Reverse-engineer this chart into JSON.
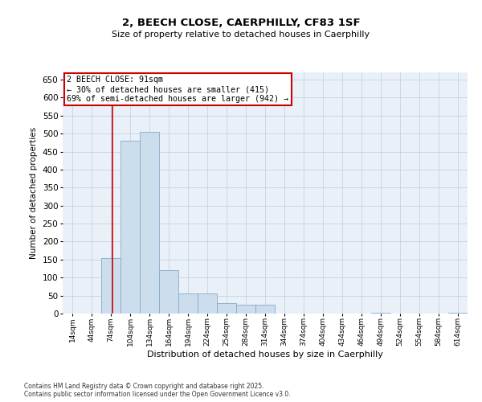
{
  "title": "2, BEECH CLOSE, CAERPHILLY, CF83 1SF",
  "subtitle": "Size of property relative to detached houses in Caerphilly",
  "xlabel": "Distribution of detached houses by size in Caerphilly",
  "ylabel": "Number of detached properties",
  "footer_line1": "Contains HM Land Registry data © Crown copyright and database right 2025.",
  "footer_line2": "Contains public sector information licensed under the Open Government Licence v3.0.",
  "annotation_title": "2 BEECH CLOSE: 91sqm",
  "annotation_line1": "← 30% of detached houses are smaller (415)",
  "annotation_line2": "69% of semi-detached houses are larger (942) →",
  "bar_color": "#ccdded",
  "bar_edge_color": "#88aac8",
  "vline_color": "#cc0000",
  "vline_x": 91,
  "annotation_box_color": "#ffffff",
  "annotation_box_edge": "#cc0000",
  "background_color": "#eaf0f8",
  "categories": [
    "14sqm",
    "44sqm",
    "74sqm",
    "104sqm",
    "134sqm",
    "164sqm",
    "194sqm",
    "224sqm",
    "254sqm",
    "284sqm",
    "314sqm",
    "344sqm",
    "374sqm",
    "404sqm",
    "434sqm",
    "464sqm",
    "494sqm",
    "524sqm",
    "554sqm",
    "584sqm",
    "614sqm"
  ],
  "bin_edges": [
    14,
    44,
    74,
    104,
    134,
    164,
    194,
    224,
    254,
    284,
    314,
    344,
    374,
    404,
    434,
    464,
    494,
    524,
    554,
    584,
    614,
    644
  ],
  "values": [
    0,
    0,
    155,
    480,
    505,
    120,
    55,
    55,
    30,
    25,
    25,
    0,
    0,
    0,
    0,
    0,
    3,
    0,
    0,
    0,
    2
  ],
  "ylim": [
    0,
    670
  ],
  "yticks": [
    0,
    50,
    100,
    150,
    200,
    250,
    300,
    350,
    400,
    450,
    500,
    550,
    600,
    650
  ]
}
